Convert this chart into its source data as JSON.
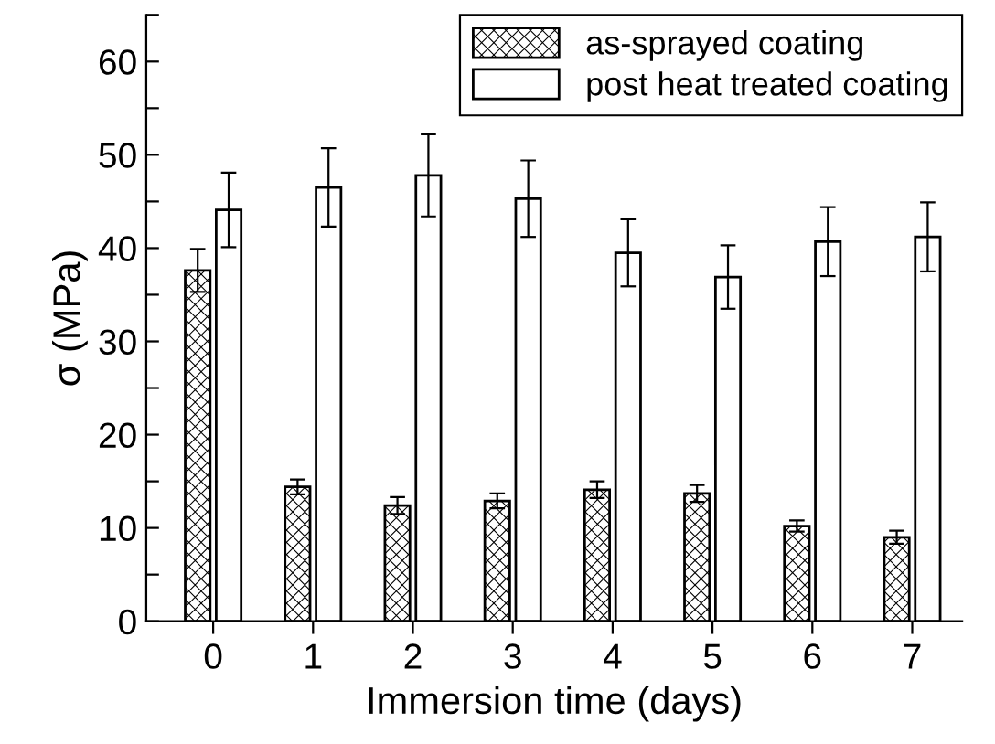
{
  "chart_data": {
    "type": "bar",
    "xlabel": "Immersion time (days)",
    "ylabel": "σ (MPa)",
    "categories": [
      "0",
      "1",
      "2",
      "3",
      "4",
      "5",
      "6",
      "7"
    ],
    "series": [
      {
        "name": "as-sprayed coating",
        "color": "#000000",
        "values": [
          37.6,
          14.4,
          12.4,
          12.9,
          14.1,
          13.7,
          10.2,
          9.0
        ],
        "errors": [
          2.3,
          0.8,
          0.9,
          0.8,
          0.9,
          0.9,
          0.6,
          0.7
        ]
      },
      {
        "name": "post heat treated coating",
        "color": "#ffffff",
        "values": [
          44.1,
          46.5,
          47.8,
          45.3,
          39.5,
          36.9,
          40.7,
          41.2
        ],
        "errors": [
          4.0,
          4.2,
          4.4,
          4.1,
          3.6,
          3.4,
          3.7,
          3.7
        ]
      }
    ],
    "ylim": [
      0,
      65
    ],
    "yticks": [
      0,
      {
        "value": 5,
        "label": null
      },
      10,
      {
        "value": 15,
        "label": null
      },
      20,
      {
        "value": 25,
        "label": null
      },
      30,
      {
        "value": 35,
        "label": null
      },
      40,
      {
        "value": 45,
        "label": null
      },
      50,
      {
        "value": 55,
        "label": null
      },
      60,
      {
        "value": 65,
        "label": null
      }
    ],
    "legend": "top right",
    "grid": false
  }
}
